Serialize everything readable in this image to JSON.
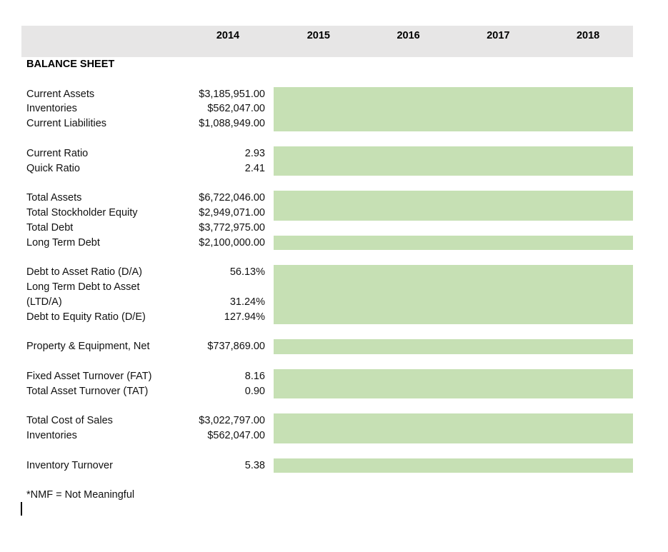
{
  "header": {
    "years": [
      "2014",
      "2015",
      "2016",
      "2017",
      "2018"
    ],
    "background": "#e7e6e6"
  },
  "highlight_color": "#c6e0b4",
  "text_color": "#111111",
  "rows": [
    {
      "label": "BALANCE SHEET",
      "bold": true
    },
    {
      "blank": true
    },
    {
      "label": "Current Assets",
      "value": "$3,185,951.00",
      "green": true
    },
    {
      "label": "Inventories",
      "value": "$562,047.00",
      "green": true
    },
    {
      "label": "Current Liabilities",
      "value": "$1,088,949.00",
      "green": true
    },
    {
      "blank": true
    },
    {
      "label": "Current Ratio",
      "value": "2.93",
      "green": true
    },
    {
      "label": "Quick Ratio",
      "value": "2.41",
      "green": true
    },
    {
      "blank": true
    },
    {
      "label": "Total Assets",
      "value": "$6,722,046.00",
      "green": true
    },
    {
      "label": "Total Stockholder Equity",
      "value": "$2,949,071.00",
      "green": true
    },
    {
      "label": "Total Debt",
      "value": "$3,772,975.00",
      "green": false
    },
    {
      "label": "Long Term Debt",
      "value": "$2,100,000.00",
      "green": true
    },
    {
      "blank": true
    },
    {
      "label": "Debt to Asset Ratio (D/A)",
      "value": "56.13%",
      "green": true
    },
    {
      "label": "Long Term Debt to Asset (LTD/A)",
      "value": "31.24%",
      "green": true,
      "tall": true
    },
    {
      "label": "Debt to Equity Ratio (D/E)",
      "value": "127.94%",
      "green": true
    },
    {
      "blank": true
    },
    {
      "label": "Property & Equipment, Net",
      "value": "$737,869.00",
      "green": true
    },
    {
      "blank": true
    },
    {
      "label": "Fixed Asset Turnover (FAT)",
      "value": "8.16",
      "green": true
    },
    {
      "label": "Total Asset Turnover (TAT)",
      "value": "0.90",
      "green": true
    },
    {
      "blank": true
    },
    {
      "label": "Total Cost of Sales",
      "value": "$3,022,797.00",
      "green": true
    },
    {
      "label": "Inventories",
      "value": "$562,047.00",
      "green": true
    },
    {
      "blank": true
    },
    {
      "label": "Inventory Turnover",
      "value": "5.38",
      "green": true
    },
    {
      "blank": true
    }
  ],
  "footnote": "*NMF = Not Meaningful"
}
